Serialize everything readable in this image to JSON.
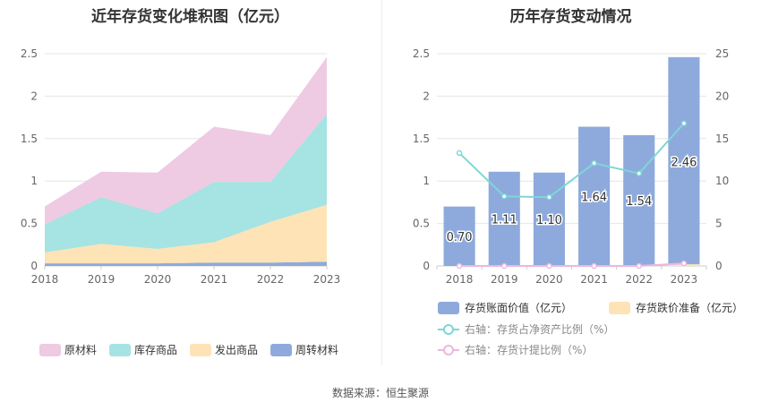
{
  "source": "数据来源：恒生聚源",
  "chart_data": [
    {
      "type": "area",
      "title": "近年存货变化堆积图（亿元）",
      "x": [
        "2018",
        "2019",
        "2020",
        "2021",
        "2022",
        "2023"
      ],
      "y_ticks": [
        "0",
        "0.5",
        "1",
        "1.5",
        "2",
        "2.5"
      ],
      "ylim": [
        0,
        2.5
      ],
      "stacked": true,
      "legend_position": "bottom",
      "series": [
        {
          "name": "周转材料",
          "color": "#8eaadc",
          "values": [
            0.03,
            0.03,
            0.03,
            0.04,
            0.04,
            0.05
          ]
        },
        {
          "name": "发出商品",
          "color": "#fde3b6",
          "values": [
            0.13,
            0.23,
            0.17,
            0.24,
            0.48,
            0.67
          ]
        },
        {
          "name": "库存商品",
          "color": "#a6e3e3",
          "values": [
            0.33,
            0.55,
            0.42,
            0.71,
            0.47,
            1.07
          ]
        },
        {
          "name": "原材料",
          "color": "#eecae3",
          "values": [
            0.21,
            0.3,
            0.48,
            0.65,
            0.55,
            0.67
          ]
        }
      ],
      "legend_order": [
        "原材料",
        "库存商品",
        "发出商品",
        "周转材料"
      ]
    },
    {
      "type": "bar",
      "title": "历年存货变动情况",
      "categories": [
        "2018",
        "2019",
        "2020",
        "2021",
        "2022",
        "2023"
      ],
      "left_ticks": [
        "0",
        "0.5",
        "1",
        "1.5",
        "2",
        "2.5"
      ],
      "right_ticks": [
        "0",
        "5",
        "10",
        "15",
        "20",
        "25"
      ],
      "ylim": [
        0,
        2.5
      ],
      "y2lim": [
        0,
        25
      ],
      "legend_position": "bottom",
      "series": [
        {
          "name": "存货账面价值（亿元）",
          "kind": "bar",
          "axis": "left",
          "color": "#8eaadc",
          "values": [
            0.7,
            1.11,
            1.1,
            1.64,
            1.54,
            2.46
          ],
          "labels": [
            "0.70",
            "1.11",
            "1.10",
            "1.64",
            "1.54",
            "2.46"
          ]
        },
        {
          "name": "存货跌价准备（亿元）",
          "kind": "bar",
          "axis": "left",
          "color": "#fde3b6",
          "values": [
            0,
            0,
            0,
            0,
            0,
            0.02
          ]
        },
        {
          "name": "右轴：存货占净资产比例（%）",
          "kind": "line",
          "axis": "right",
          "color": "#7fd6d6",
          "values": [
            13.3,
            8.2,
            8.1,
            12.1,
            10.9,
            16.8
          ]
        },
        {
          "name": "右轴：存货计提比例（%）",
          "kind": "line",
          "axis": "right",
          "color": "#eab8dd",
          "values": [
            0,
            0,
            0,
            0,
            0,
            0.3
          ]
        }
      ]
    }
  ]
}
